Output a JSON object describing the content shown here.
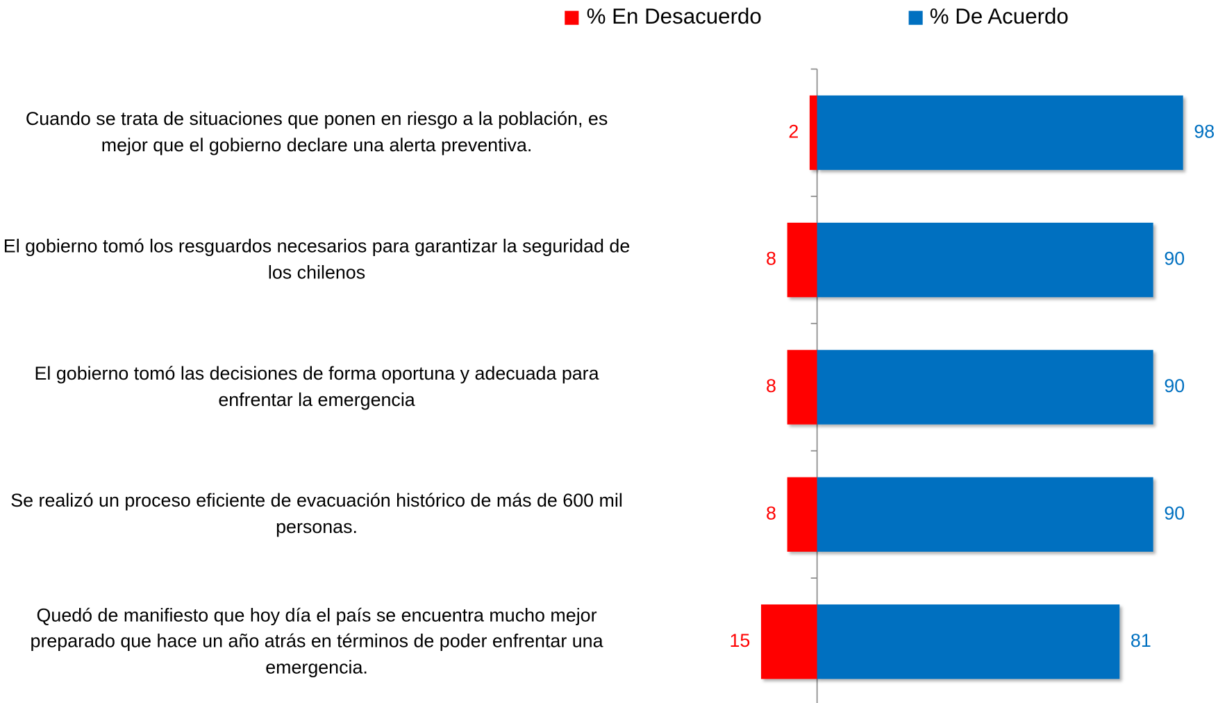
{
  "chart_data": {
    "type": "diverging-bar",
    "categories": [
      "Cuando se trata de situaciones que ponen en riesgo a la población, es mejor que el gobierno declare una alerta preventiva.",
      "El gobierno tomó los resguardos necesarios para garantizar la seguridad de los chilenos",
      "El gobierno tomó las decisiones de forma oportuna y adecuada para enfrentar la emergencia",
      "Se realizó un proceso eficiente de evacuación histórico de más de 600 mil personas.",
      "Quedó de manifiesto que hoy día el país se encuentra mucho mejor preparado que hace un año atrás en términos de poder enfrentar una emergencia."
    ],
    "series": [
      {
        "name": "% En Desacuerdo",
        "color": "#ff0000",
        "values": [
          2,
          8,
          8,
          8,
          15
        ]
      },
      {
        "name": "% De Acuerdo",
        "color": "#0070c0",
        "values": [
          98,
          90,
          90,
          90,
          81
        ]
      }
    ]
  }
}
